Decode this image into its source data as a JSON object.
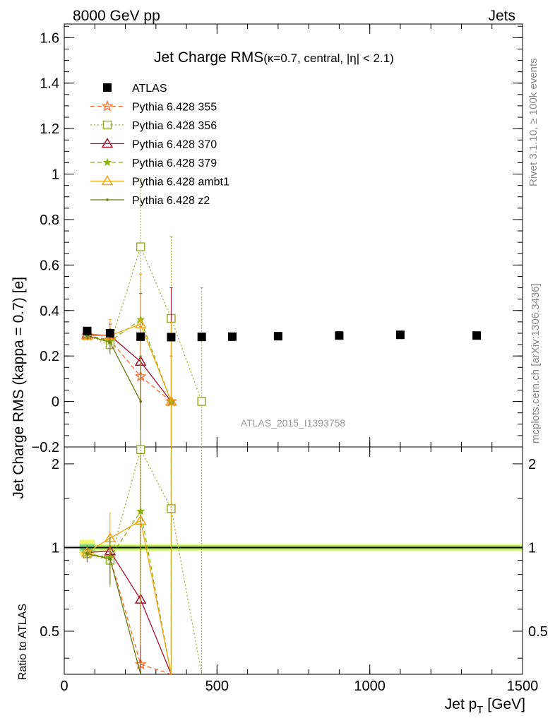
{
  "header": {
    "left": "8000 GeV pp",
    "right": "Jets"
  },
  "side_labels": {
    "rivet": "Rivet 3.1.10, ≥ 100k events",
    "mcplots": "mcplots.cern.ch [arXiv:1306.3436]"
  },
  "chart_data": {
    "type": "scatter",
    "title": "Jet Charge RMS",
    "subtitle": "(κ=0.7, central, |η| < 2.1)",
    "watermark": "ATLAS_2015_I1393758",
    "xlabel_main": "Jet p",
    "xlabel_sub": "T",
    "xlabel_unit": " [GeV]",
    "ylabel": "Jet Charge RMS (kappa = 0.7) [e]",
    "ratio_ylabel": "Ratio to ATLAS",
    "xlim": [
      0,
      1500
    ],
    "ylim": [
      -0.2,
      1.66
    ],
    "ratio_ylim": [
      0.35,
      2.3
    ],
    "xticks": [
      0,
      500,
      1000,
      1500
    ],
    "xtick_labels": [
      "0",
      "500",
      "1000",
      "1500"
    ],
    "yticks": [
      -0.2,
      0,
      0.2,
      0.4,
      0.6,
      0.8,
      1,
      1.2,
      1.4,
      1.6
    ],
    "ytick_labels": [
      "−0.2",
      "0",
      "0.2",
      "0.4",
      "0.6",
      "0.8",
      "1",
      "1.2",
      "1.4",
      "1.6"
    ],
    "ratio_yticks": [
      0.5,
      1,
      2
    ],
    "ratio_ytick_labels": [
      "0.5",
      "1",
      "2"
    ],
    "legend_position": "top-left",
    "data": {
      "name": "ATLAS",
      "color": "#000000",
      "x": [
        75,
        150,
        250,
        350,
        450,
        550,
        700,
        900,
        1100,
        1350
      ],
      "y": [
        0.31,
        0.3,
        0.285,
        0.283,
        0.284,
        0.285,
        0.287,
        0.29,
        0.293,
        0.29
      ],
      "xerr": [
        25,
        50,
        50,
        50,
        50,
        50,
        100,
        100,
        100,
        150
      ]
    },
    "series": [
      {
        "name": "Pythia 6.428 355",
        "color": "#ff6a2b",
        "marker": "star-open",
        "dash": "6,4",
        "x": [
          75,
          150,
          250,
          350
        ],
        "y": [
          0.29,
          0.27,
          0.11,
          0.0
        ],
        "err": [
          0.02,
          0.05,
          0.22,
          0.2
        ]
      },
      {
        "name": "Pythia 6.428 356",
        "color": "#9bad2a",
        "marker": "square-open",
        "dash": "2,3",
        "x": [
          75,
          150,
          250,
          350,
          450
        ],
        "y": [
          0.29,
          0.25,
          0.68,
          0.365,
          0.0
        ],
        "err": [
          0.02,
          0.05,
          0.3,
          0.36,
          0.5
        ]
      },
      {
        "name": "Pythia 6.428 370",
        "color": "#a8102c",
        "marker": "triangle-open",
        "dash": "",
        "x": [
          75,
          150,
          250,
          350
        ],
        "y": [
          0.295,
          0.29,
          0.175,
          0.0
        ],
        "err": [
          0.02,
          0.05,
          0.3,
          0.5
        ]
      },
      {
        "name": "Pythia 6.428 379",
        "color": "#87b50b",
        "marker": "star-filled",
        "dash": "6,4",
        "x": [
          75,
          150,
          250,
          350
        ],
        "y": [
          0.29,
          0.265,
          0.36,
          0.0
        ],
        "err": [
          0.02,
          0.05,
          0.2,
          0.2
        ]
      },
      {
        "name": "Pythia 6.428 ambt1",
        "color": "#f0a515",
        "marker": "triangle-open",
        "dash": "",
        "x": [
          75,
          150,
          250,
          350
        ],
        "y": [
          0.29,
          0.29,
          0.34,
          0.0
        ],
        "err": [
          0.02,
          0.07,
          0.22,
          0.35
        ]
      },
      {
        "name": "Pythia 6.428 z2",
        "color": "#6b7a0f",
        "marker": "dot",
        "dash": "",
        "x": [
          75,
          150,
          250
        ],
        "y": [
          0.29,
          0.26,
          0.0
        ],
        "err": [
          0.02,
          0.05,
          0.2
        ]
      }
    ],
    "ratio_series": [
      {
        "name": "Pythia 6.428 355",
        "x": [
          75,
          150,
          250,
          350
        ],
        "y": [
          0.95,
          0.92,
          0.38,
          0.0
        ]
      },
      {
        "name": "Pythia 6.428 356",
        "x": [
          75,
          150,
          250,
          350,
          450
        ],
        "y": [
          0.95,
          0.9,
          2.25,
          1.38,
          0.0
        ]
      },
      {
        "name": "Pythia 6.428 370",
        "x": [
          75,
          150,
          250,
          350
        ],
        "y": [
          0.96,
          0.97,
          0.65,
          0.0
        ]
      },
      {
        "name": "Pythia 6.428 379",
        "x": [
          75,
          150,
          250,
          350
        ],
        "y": [
          0.95,
          0.92,
          1.35,
          0.0
        ]
      },
      {
        "name": "Pythia 6.428 ambt1",
        "x": [
          75,
          150,
          250,
          350
        ],
        "y": [
          0.96,
          1.08,
          1.25,
          0.0
        ]
      },
      {
        "name": "Pythia 6.428 z2",
        "x": [
          75,
          150,
          250
        ],
        "y": [
          0.95,
          0.91,
          0.0
        ]
      }
    ]
  }
}
